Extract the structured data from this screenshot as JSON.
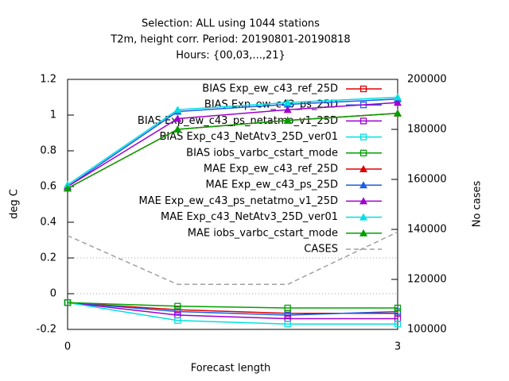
{
  "chart_data": {
    "type": "line",
    "title": [
      "Selection: ALL using  1044 stations",
      "T2m, height corr.   Period: 20190801-20190818",
      "Hours: {00,03,...,21}"
    ],
    "xlabel": "Forecast length",
    "ylabel": "deg C",
    "y2label": "No cases",
    "x": [
      0,
      1,
      2,
      3
    ],
    "xlim": [
      0,
      3
    ],
    "xticks": [
      0,
      3
    ],
    "ylim": [
      -0.2,
      1.2
    ],
    "yticks": [
      -0.2,
      0,
      0.2,
      0.4,
      0.6,
      0.8,
      1,
      1.2
    ],
    "y2lim": [
      100000,
      200000
    ],
    "y2ticks": [
      100000,
      120000,
      140000,
      160000,
      180000,
      200000
    ],
    "reference_lines": [
      0,
      0.2
    ],
    "legend": "top-right",
    "series": [
      {
        "name": "BIAS Exp_ew_c43_ref_25D",
        "color": "#dd0000",
        "marker": "square",
        "values": [
          -0.05,
          -0.09,
          -0.11,
          -0.11
        ]
      },
      {
        "name": "BIAS Exp_ew_c43_ps_25D",
        "color": "#1a5ee6",
        "marker": "square",
        "values": [
          -0.05,
          -0.1,
          -0.12,
          -0.1
        ]
      },
      {
        "name": "BIAS Exp_ew_c43_ps_netatmo_v1_25D",
        "color": "#a000d0",
        "marker": "square",
        "values": [
          -0.05,
          -0.12,
          -0.14,
          -0.14
        ]
      },
      {
        "name": "BIAS Exp_c43_NetAtv3_25D_ver01",
        "color": "#00e0e0",
        "marker": "square",
        "values": [
          -0.05,
          -0.15,
          -0.17,
          -0.17
        ]
      },
      {
        "name": "BIAS iobs_varbc_cstart_mode",
        "color": "#00a000",
        "marker": "square",
        "values": [
          -0.05,
          -0.07,
          -0.08,
          -0.08
        ]
      },
      {
        "name": "MAE Exp_ew_c43_ref_25D",
        "color": "#dd0000",
        "marker": "triangle",
        "values": [
          0.59,
          0.92,
          0.97,
          1.01
        ]
      },
      {
        "name": "MAE Exp_ew_c43_ps_25D",
        "color": "#1a5ee6",
        "marker": "triangle",
        "values": [
          0.6,
          1.02,
          1.06,
          1.09
        ]
      },
      {
        "name": "MAE Exp_ew_c43_ps_netatmo_v1_25D",
        "color": "#a000d0",
        "marker": "triangle",
        "values": [
          0.6,
          0.98,
          1.03,
          1.07
        ]
      },
      {
        "name": "MAE Exp_c43_NetAtv3_25D_ver01",
        "color": "#00e0e0",
        "marker": "triangle",
        "values": [
          0.61,
          1.03,
          1.07,
          1.1
        ]
      },
      {
        "name": "MAE iobs_varbc_cstart_mode",
        "color": "#00a000",
        "marker": "triangle",
        "values": [
          0.59,
          0.92,
          0.97,
          1.01
        ]
      },
      {
        "name": "CASES",
        "color": "#a0a0a0",
        "marker": "none",
        "dash": true,
        "axis": "y2",
        "values": [
          137500,
          118000,
          118000,
          139000
        ]
      }
    ]
  }
}
